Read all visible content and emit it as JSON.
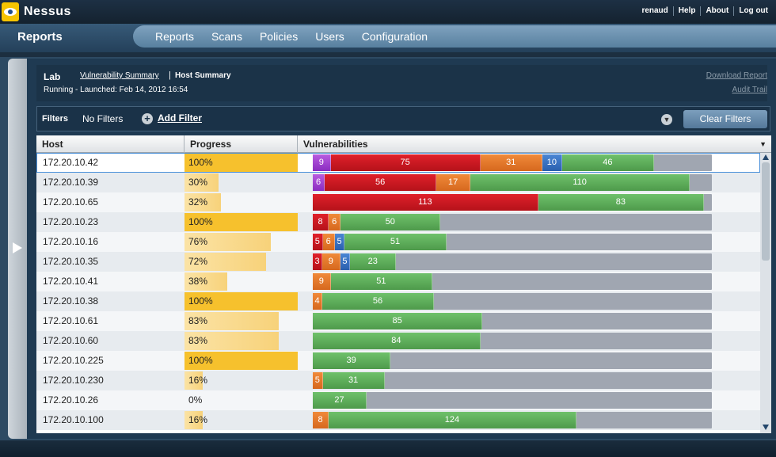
{
  "app": {
    "name": "Nessus"
  },
  "toplinks": [
    "renaud",
    "Help",
    "About",
    "Log out"
  ],
  "section_title": "Reports",
  "nav": [
    "Reports",
    "Scans",
    "Policies",
    "Users",
    "Configuration"
  ],
  "header": {
    "scan_name": "Lab",
    "breadcrumb_link": "Vulnerability Summary",
    "breadcrumb_divider": "|",
    "breadcrumb_current": "Host Summary",
    "status": "Running - Launched: Feb 14, 2012 16:54",
    "download_report": "Download Report",
    "audit_trail": "Audit Trail"
  },
  "filters": {
    "label": "Filters",
    "value": "No Filters",
    "add_label": "Add Filter",
    "clear_label": "Clear Filters"
  },
  "table": {
    "headers": {
      "host": "Host",
      "progress": "Progress",
      "vulnerabilities": "Vulnerabilities"
    },
    "rows": [
      {
        "host": "172.20.10.42",
        "progress": "100%",
        "pct": 100,
        "sel": true,
        "v": [
          9,
          75,
          31,
          10,
          46
        ]
      },
      {
        "host": "172.20.10.39",
        "progress": "30%",
        "pct": 30,
        "v": [
          6,
          56,
          17,
          0,
          110
        ]
      },
      {
        "host": "172.20.10.65",
        "progress": "32%",
        "pct": 32,
        "v": [
          0,
          113,
          0,
          0,
          83
        ]
      },
      {
        "host": "172.20.10.23",
        "progress": "100%",
        "pct": 100,
        "v": [
          0,
          8,
          6,
          0,
          50
        ]
      },
      {
        "host": "172.20.10.16",
        "progress": "76%",
        "pct": 76,
        "v": [
          0,
          5,
          6,
          5,
          51
        ]
      },
      {
        "host": "172.20.10.35",
        "progress": "72%",
        "pct": 72,
        "v": [
          0,
          3,
          9,
          5,
          23
        ]
      },
      {
        "host": "172.20.10.41",
        "progress": "38%",
        "pct": 38,
        "v": [
          0,
          0,
          9,
          0,
          51
        ]
      },
      {
        "host": "172.20.10.38",
        "progress": "100%",
        "pct": 100,
        "v": [
          0,
          0,
          4,
          0,
          56
        ]
      },
      {
        "host": "172.20.10.61",
        "progress": "83%",
        "pct": 83,
        "v": [
          0,
          0,
          0,
          0,
          85
        ]
      },
      {
        "host": "172.20.10.60",
        "progress": "83%",
        "pct": 83,
        "v": [
          0,
          0,
          0,
          0,
          84
        ]
      },
      {
        "host": "172.20.10.225",
        "progress": "100%",
        "pct": 100,
        "v": [
          0,
          0,
          0,
          0,
          39
        ]
      },
      {
        "host": "172.20.10.230",
        "progress": "16%",
        "pct": 16,
        "v": [
          0,
          0,
          5,
          0,
          31
        ]
      },
      {
        "host": "172.20.10.26",
        "progress": "0%",
        "pct": 0,
        "v": [
          0,
          0,
          0,
          0,
          27
        ]
      },
      {
        "host": "172.20.10.100",
        "progress": "16%",
        "pct": 16,
        "v": [
          0,
          0,
          8,
          0,
          124
        ]
      }
    ]
  },
  "colors": {
    "critical": "#8a2cc0",
    "high": "#d21822",
    "medium": "#e27628",
    "low": "#3a72c2",
    "info": "#5eae5a",
    "progress": "#f6c12d"
  }
}
